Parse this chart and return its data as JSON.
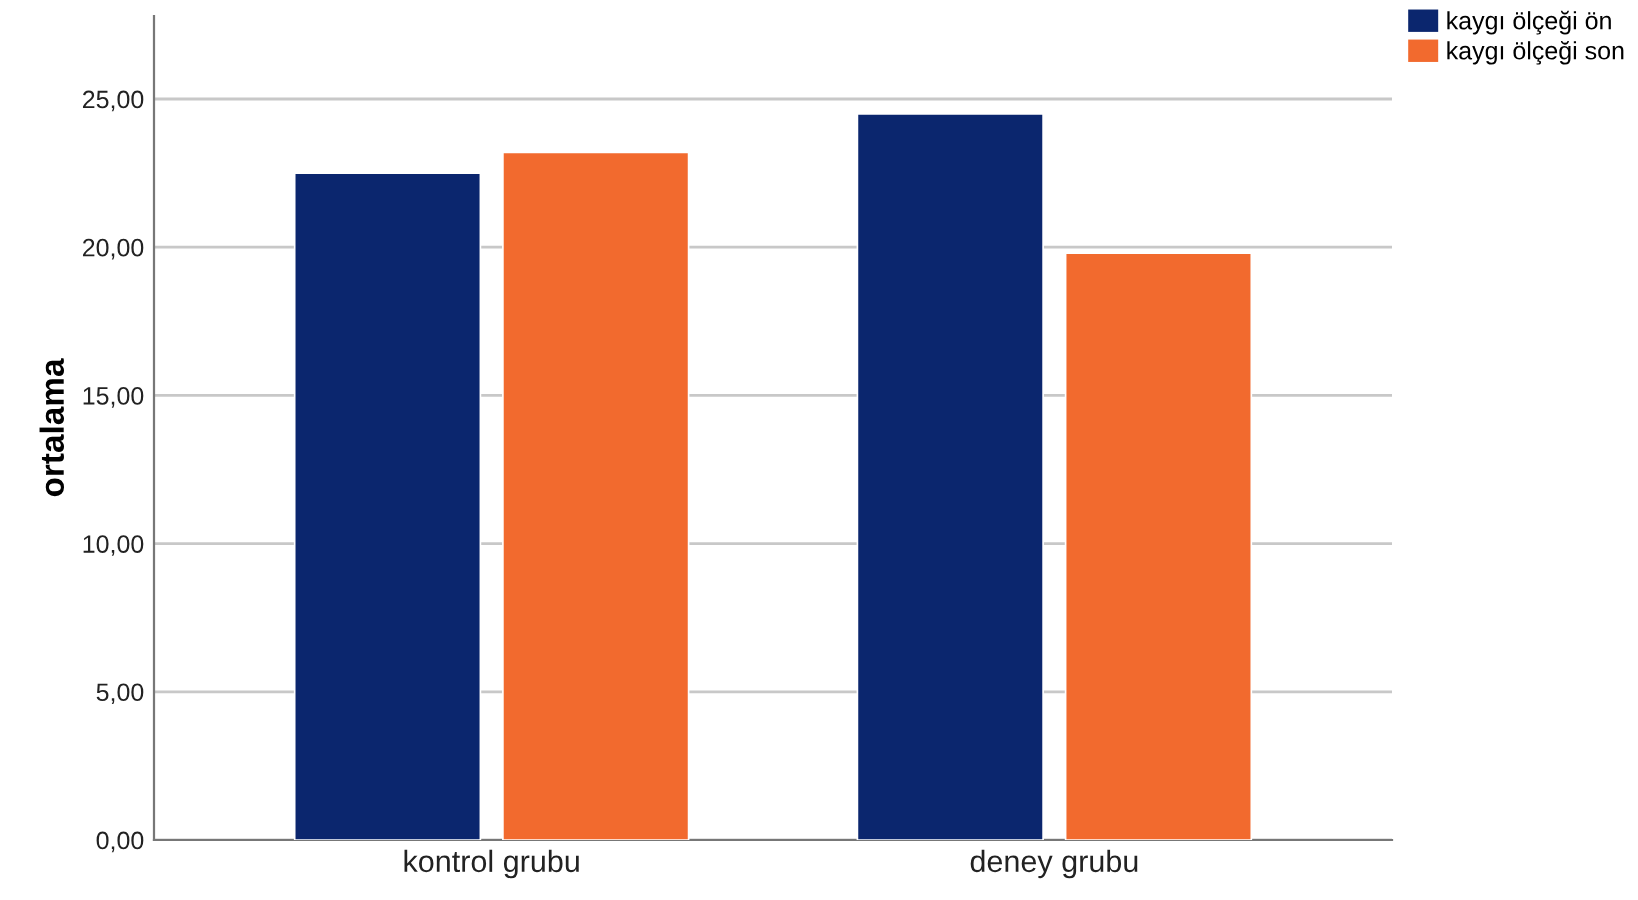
{
  "chart_data": {
    "type": "bar",
    "ylabel": "ortalama",
    "categories": [
      "kontrol grubu",
      "deney grubu"
    ],
    "series": [
      {
        "name": "kaygı ölçeği ön",
        "color": "#0b266e",
        "values": [
          22.5,
          24.5
        ]
      },
      {
        "name": "kaygı ölçeği son",
        "color": "#f26a2e",
        "values": [
          23.2,
          19.8
        ]
      }
    ],
    "ylim": [
      0,
      27.8
    ],
    "yticks": [
      {
        "value": 0,
        "label": "0,00"
      },
      {
        "value": 5,
        "label": "5,00"
      },
      {
        "value": 10,
        "label": "10,00"
      },
      {
        "value": 15,
        "label": "15,00"
      },
      {
        "value": 20,
        "label": "20,00"
      },
      {
        "value": 25,
        "label": "25,00"
      }
    ],
    "grid": "y",
    "legend": "top right"
  }
}
